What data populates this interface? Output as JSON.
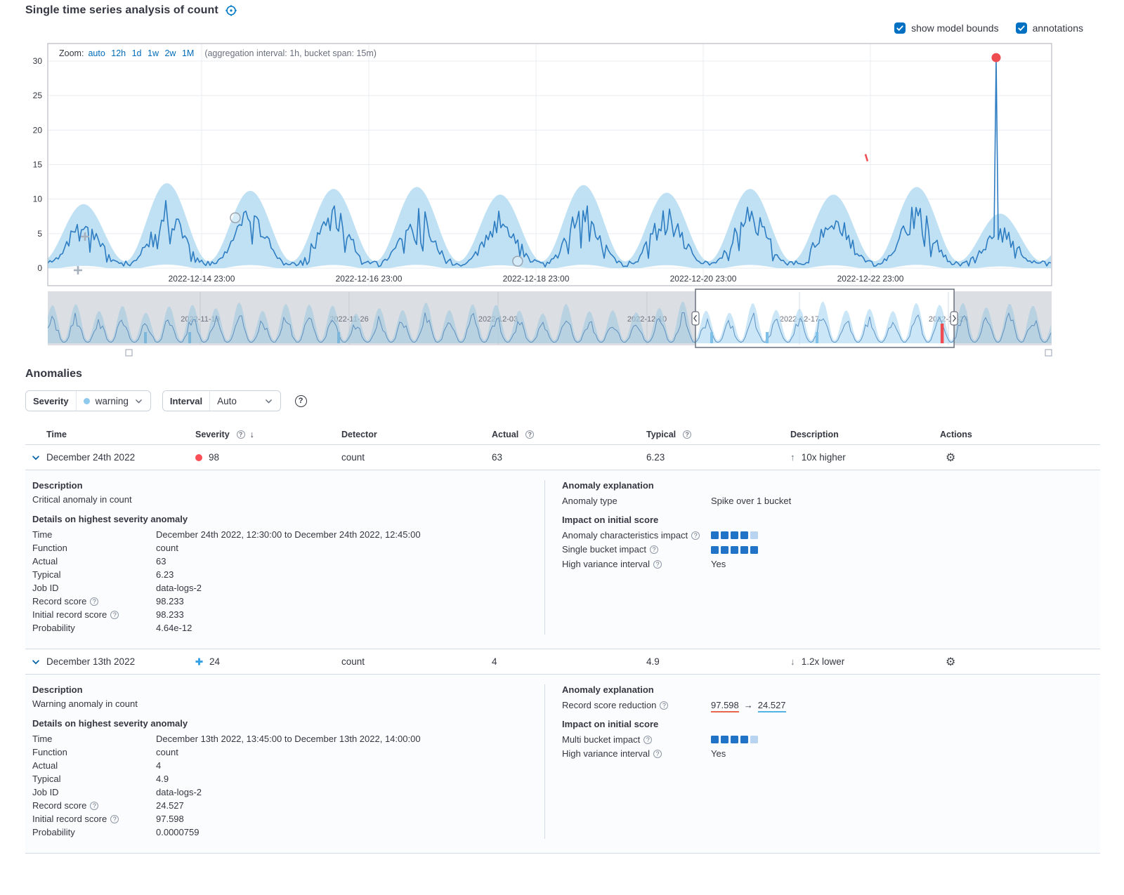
{
  "page": {
    "title": "Single time series analysis of count"
  },
  "controls": {
    "show_model_bounds": "show model bounds",
    "annotations": "annotations"
  },
  "icons": {
    "help": "?",
    "info": "?",
    "gear": "⚙",
    "sort_desc": "↓",
    "arrow_up": "↑",
    "arrow_down": "↓",
    "arrow_right": "→"
  },
  "chart": {
    "zoom_label": "Zoom:",
    "zoom_options": [
      "auto",
      "12h",
      "1d",
      "1w",
      "2w",
      "1M"
    ],
    "aggregation_note": "(aggregation interval: 1h, bucket span: 15m)",
    "colors": {
      "line": "#2e7dc2",
      "band": "#b5dcf2",
      "critical": "#ee4c50",
      "warning": "#7fc0e8"
    }
  },
  "chart_data": {
    "type": "line",
    "title": "Single time series analysis of count",
    "main": {
      "y_ticks": [
        0,
        5,
        10,
        15,
        20,
        25,
        30
      ],
      "ylim": [
        0,
        31
      ],
      "x_tick_labels": [
        "2022-12-14 23:00",
        "2022-12-16 23:00",
        "2022-12-18 23:00",
        "2022-12-20 23:00",
        "2022-12-22 23:00"
      ],
      "daily_peaks": [
        6.0,
        8.2,
        7.4,
        7.6,
        7.8,
        7.0,
        8.0,
        7.2,
        7.6,
        7.0,
        7.8,
        5.0,
        5.5
      ],
      "phase_offset": 0.07,
      "bounds": {
        "base": 1.0,
        "peak_scale": 1.38
      },
      "anomaly_spike": {
        "x_frac": 0.9447,
        "value": 30.5
      },
      "warning_dash": {
        "x_frac": 0.8145,
        "value": 16
      },
      "hollow_markers": [
        {
          "x_frac": 0.1868,
          "value": 7.3
        },
        {
          "x_frac": 0.4681,
          "value": 1.0
        }
      ],
      "seed": 11
    },
    "context": {
      "x_tick_labels": [
        "2022-11-19",
        "2022-11-26",
        "2022-12-03",
        "2022-12-10",
        "2022-12-17",
        "2022-12-24"
      ],
      "days": 43,
      "selection_frac": [
        0.6452,
        0.9028
      ],
      "warning_marks_frac": [
        0.0973,
        0.1414,
        0.2897,
        0.6613,
        0.7166,
        0.7663
      ],
      "critical_mark_frac": 0.8909,
      "seed": 5
    }
  },
  "anomalies": {
    "heading": "Anomalies",
    "filters": {
      "severity_label": "Severity",
      "severity_value": "warning",
      "interval_label": "Interval",
      "interval_value": "Auto"
    },
    "table": {
      "columns": {
        "time": "Time",
        "severity": "Severity",
        "detector": "Detector",
        "actual": "Actual",
        "typical": "Typical",
        "description": "Description",
        "actions": "Actions"
      },
      "rows": [
        {
          "time": "December 24th 2022",
          "severity_score": "98",
          "severity": "critical",
          "detector": "count",
          "actual": "63",
          "typical": "6.23",
          "description": "10x higher"
        },
        {
          "time": "December 13th 2022",
          "severity_score": "24",
          "severity": "warning",
          "detector": "count",
          "actual": "4",
          "typical": "4.9",
          "description": "1.2x lower"
        }
      ]
    },
    "details": [
      {
        "description_title": "Description",
        "description": "Critical anomaly in count",
        "details_title": "Details on highest severity anomaly",
        "fields": [
          {
            "label": "Time",
            "value": "December 24th 2022, 12:30:00 to December 24th 2022, 12:45:00"
          },
          {
            "label": "Function",
            "value": "count"
          },
          {
            "label": "Actual",
            "value": "63"
          },
          {
            "label": "Typical",
            "value": "6.23"
          },
          {
            "label": "Job ID",
            "value": "data-logs-2"
          },
          {
            "label": "Record score",
            "value": "98.233"
          },
          {
            "label": "Initial record score",
            "value": "98.233"
          },
          {
            "label": "Probability",
            "value": "4.64e-12"
          }
        ],
        "explanation_title": "Anomaly explanation",
        "anomaly_type_label": "Anomaly type",
        "anomaly_type_value": "Spike over 1 bucket",
        "impact_title": "Impact on initial score",
        "impacts": [
          {
            "label": "Anomaly characteristics impact",
            "score": 4
          },
          {
            "label": "Single bucket impact",
            "score": 5
          }
        ],
        "high_variance_label": "High variance interval",
        "high_variance_value": "Yes"
      },
      {
        "description_title": "Description",
        "description": "Warning anomaly in count",
        "details_title": "Details on highest severity anomaly",
        "fields": [
          {
            "label": "Time",
            "value": "December 13th 2022, 13:45:00 to December 13th 2022, 14:00:00"
          },
          {
            "label": "Function",
            "value": "count"
          },
          {
            "label": "Actual",
            "value": "4"
          },
          {
            "label": "Typical",
            "value": "4.9"
          },
          {
            "label": "Job ID",
            "value": "data-logs-2"
          },
          {
            "label": "Record score",
            "value": "24.527"
          },
          {
            "label": "Initial record score",
            "value": "97.598"
          },
          {
            "label": "Probability",
            "value": "0.0000759"
          }
        ],
        "explanation_title": "Anomaly explanation",
        "reduction_label": "Record score reduction",
        "reduction_from": "97.598",
        "reduction_to": "24.527",
        "impact_title": "Impact on initial score",
        "impacts": [
          {
            "label": "Multi bucket impact",
            "score": 4
          }
        ],
        "high_variance_label": "High variance interval",
        "high_variance_value": "Yes"
      }
    ]
  }
}
